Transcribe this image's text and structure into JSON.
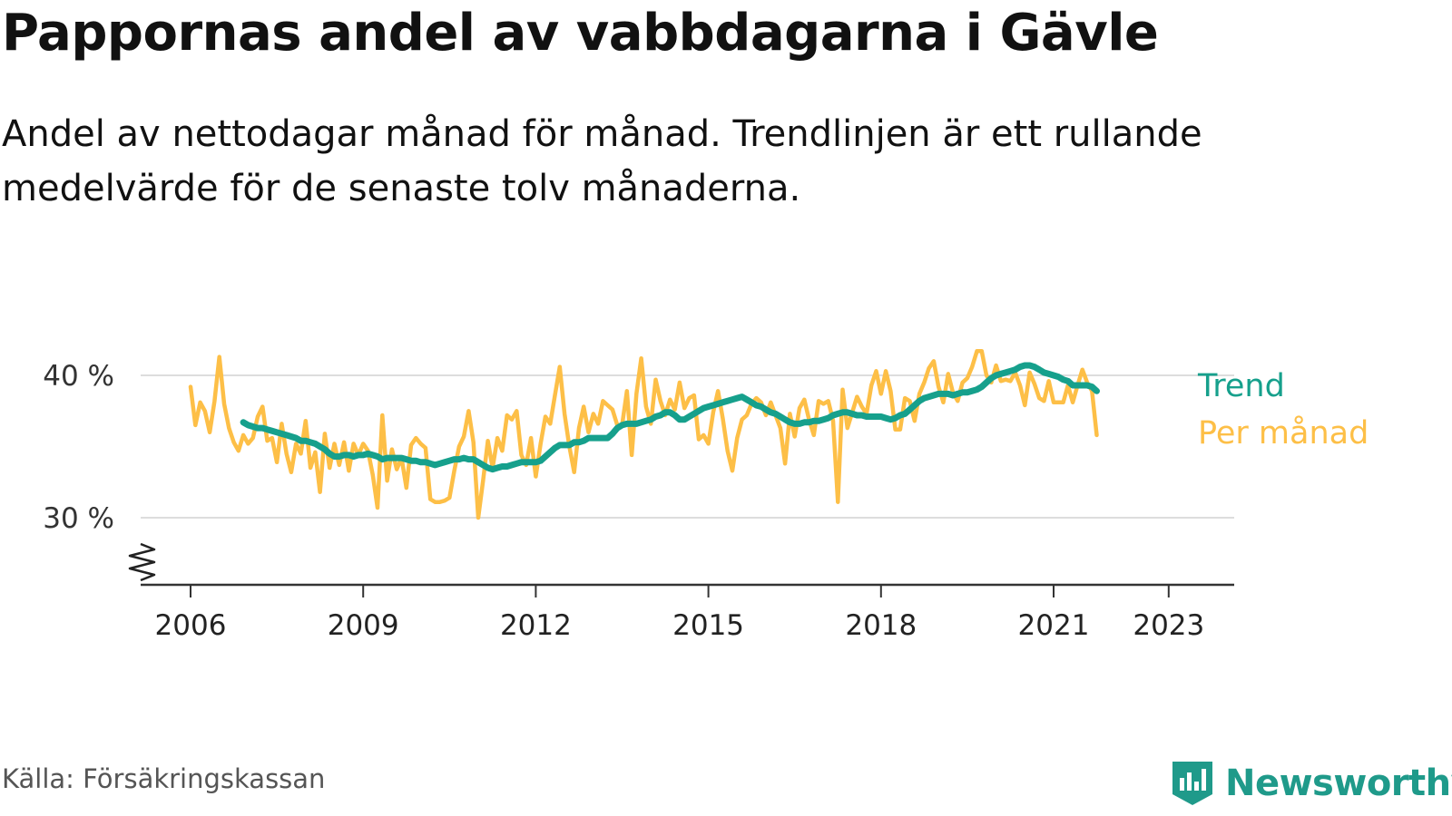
{
  "title": "Pappornas andel av vabbdagarna i Gävle",
  "subtitle": "Andel av nettodagar månad för månad. Trendlinjen är ett rullande medelvärde för de senaste tolv månaderna.",
  "source": "Källa: Försäkringskassan",
  "brand": "Newsworthy",
  "colors": {
    "monthly": "#fdbf47",
    "trend": "#16a08c",
    "grid": "#dddddd",
    "axis": "#333333",
    "brand": "#1f9a8a"
  },
  "chart_data": {
    "type": "line",
    "x_ticks": [
      "2006",
      "2009",
      "2012",
      "2015",
      "2018",
      "2021",
      "2023"
    ],
    "y_ticks": [
      {
        "value": 30,
        "label": "30 %"
      },
      {
        "value": 40,
        "label": "40 %"
      }
    ],
    "ylim": [
      25,
      43
    ],
    "y_axis_break": true,
    "series": [
      {
        "name": "Per månad",
        "color": "#fdbf47",
        "x_start": "2006-01",
        "values": [
          39.2,
          36.5,
          38.1,
          37.5,
          36.0,
          38.2,
          41.3,
          38.0,
          36.3,
          35.3,
          34.7,
          35.8,
          35.2,
          35.6,
          37.1,
          37.8,
          35.4,
          35.6,
          33.9,
          36.6,
          34.5,
          33.2,
          35.2,
          34.5,
          36.8,
          33.5,
          34.6,
          31.8,
          35.9,
          33.5,
          35.2,
          33.7,
          35.3,
          33.3,
          35.2,
          34.4,
          35.2,
          34.7,
          33.0,
          30.7,
          37.2,
          32.6,
          34.8,
          33.4,
          34.2,
          32.1,
          35.1,
          35.6,
          35.2,
          34.9,
          31.3,
          31.1,
          31.1,
          31.2,
          31.4,
          33.3,
          35.0,
          35.7,
          37.5,
          35.3,
          30.0,
          32.6,
          35.4,
          33.5,
          35.6,
          34.7,
          37.2,
          36.9,
          37.5,
          34.4,
          33.7,
          35.6,
          32.9,
          35.2,
          37.1,
          36.6,
          38.6,
          40.6,
          37.3,
          35.0,
          33.2,
          36.3,
          37.8,
          36.0,
          37.3,
          36.6,
          38.2,
          37.9,
          37.6,
          36.5,
          36.5,
          38.9,
          34.4,
          38.7,
          41.2,
          37.8,
          36.6,
          39.7,
          38.2,
          37.2,
          38.3,
          37.6,
          39.5,
          37.7,
          38.4,
          38.6,
          35.5,
          35.8,
          35.2,
          37.4,
          38.9,
          37.0,
          34.7,
          33.3,
          35.6,
          36.9,
          37.2,
          38.0,
          38.4,
          38.1,
          37.2,
          38.1,
          37.2,
          36.3,
          33.8,
          37.3,
          35.7,
          37.7,
          38.3,
          36.9,
          35.8,
          38.2,
          38.0,
          38.2,
          36.8,
          31.1,
          39.0,
          36.3,
          37.4,
          38.5,
          37.8,
          37.3,
          39.3,
          40.3,
          38.7,
          40.3,
          38.9,
          36.2,
          36.2,
          38.4,
          38.2,
          36.8,
          38.7,
          39.5,
          40.5,
          41.0,
          39.2,
          38.1,
          40.1,
          38.8,
          38.2,
          39.5,
          39.8,
          40.6,
          41.7,
          41.7,
          40.0,
          39.5,
          40.7,
          39.6,
          39.7,
          39.6,
          40.2,
          39.3,
          37.9,
          40.2,
          39.4,
          38.4,
          38.2,
          39.6,
          38.1,
          38.1,
          38.1,
          39.3,
          38.1,
          39.3,
          40.4,
          39.5,
          38.9,
          35.8
        ]
      },
      {
        "name": "Trend",
        "color": "#16a08c",
        "x_start": "2006-12",
        "values": [
          36.7,
          36.5,
          36.4,
          36.3,
          36.3,
          36.2,
          36.1,
          36.0,
          35.9,
          35.8,
          35.7,
          35.6,
          35.4,
          35.4,
          35.3,
          35.2,
          35.0,
          34.8,
          34.5,
          34.3,
          34.3,
          34.4,
          34.4,
          34.3,
          34.4,
          34.4,
          34.5,
          34.4,
          34.3,
          34.1,
          34.2,
          34.2,
          34.2,
          34.2,
          34.1,
          34.0,
          34.0,
          33.9,
          33.9,
          33.8,
          33.7,
          33.8,
          33.9,
          34.0,
          34.1,
          34.1,
          34.2,
          34.1,
          34.1,
          33.9,
          33.7,
          33.5,
          33.4,
          33.5,
          33.6,
          33.6,
          33.7,
          33.8,
          33.9,
          33.9,
          33.9,
          33.9,
          34.0,
          34.3,
          34.6,
          34.9,
          35.1,
          35.1,
          35.1,
          35.3,
          35.3,
          35.4,
          35.6,
          35.6,
          35.6,
          35.6,
          35.6,
          35.9,
          36.3,
          36.5,
          36.6,
          36.6,
          36.6,
          36.7,
          36.8,
          36.9,
          37.1,
          37.2,
          37.4,
          37.4,
          37.2,
          36.9,
          36.9,
          37.1,
          37.3,
          37.5,
          37.7,
          37.8,
          37.9,
          38.0,
          38.1,
          38.2,
          38.3,
          38.4,
          38.5,
          38.3,
          38.1,
          37.9,
          37.8,
          37.6,
          37.4,
          37.3,
          37.1,
          36.9,
          36.7,
          36.6,
          36.6,
          36.7,
          36.7,
          36.8,
          36.8,
          36.9,
          37.0,
          37.2,
          37.3,
          37.4,
          37.4,
          37.3,
          37.2,
          37.2,
          37.1,
          37.1,
          37.1,
          37.1,
          37.0,
          36.9,
          37.0,
          37.2,
          37.3,
          37.6,
          37.9,
          38.2,
          38.4,
          38.5,
          38.6,
          38.7,
          38.7,
          38.7,
          38.6,
          38.7,
          38.8,
          38.8,
          38.9,
          39.0,
          39.2,
          39.5,
          39.8,
          40.0,
          40.1,
          40.2,
          40.3,
          40.4,
          40.6,
          40.7,
          40.7,
          40.6,
          40.4,
          40.2,
          40.1,
          40.0,
          39.9,
          39.7,
          39.6,
          39.3,
          39.3,
          39.3,
          39.3,
          39.2,
          38.9
        ]
      }
    ],
    "series_labels": [
      "Trend",
      "Per månad"
    ]
  }
}
